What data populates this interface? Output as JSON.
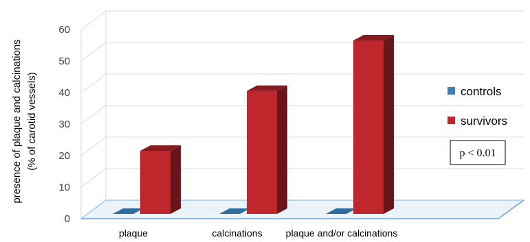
{
  "chart_data": {
    "type": "bar",
    "categories": [
      "plaque",
      "calcinations",
      "plaque and/or calcinations"
    ],
    "series": [
      {
        "name": "controls",
        "values": [
          0,
          0,
          0
        ],
        "color": "#3a7fba"
      },
      {
        "name": "survivors",
        "values": [
          20,
          39,
          55
        ],
        "color": "#c0272d"
      }
    ],
    "ylabel_line1": "presence of plaque and calcinations",
    "ylabel_line2": "(% of carotid vessels)",
    "ylim": [
      0,
      60
    ],
    "yticks": [
      "0",
      "10",
      "20",
      "30",
      "40",
      "50",
      "60"
    ],
    "grid": true,
    "three_d": true,
    "legend_position": "right",
    "annotation": "p < 0.01"
  }
}
